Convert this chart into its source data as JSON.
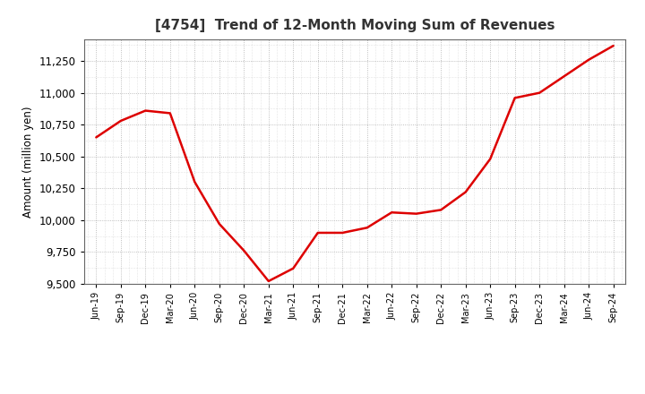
{
  "title": "[4754]  Trend of 12-Month Moving Sum of Revenues",
  "ylabel": "Amount (million yen)",
  "line_color": "#dd0000",
  "background_color": "#ffffff",
  "plot_bg_color": "#ffffff",
  "grid_color": "#999999",
  "ylim": [
    9500,
    11420
  ],
  "yticks": [
    9500,
    9750,
    10000,
    10250,
    10500,
    10750,
    11000,
    11250
  ],
  "x_labels": [
    "Jun-19",
    "Sep-19",
    "Dec-19",
    "Mar-20",
    "Jun-20",
    "Sep-20",
    "Dec-20",
    "Mar-21",
    "Jun-21",
    "Sep-21",
    "Dec-21",
    "Mar-22",
    "Jun-22",
    "Sep-22",
    "Dec-22",
    "Mar-23",
    "Jun-23",
    "Sep-23",
    "Dec-23",
    "Mar-24",
    "Jun-24",
    "Sep-24"
  ],
  "data_points": [
    10650,
    10780,
    10860,
    10840,
    10300,
    9970,
    9760,
    9520,
    9620,
    9900,
    9900,
    9940,
    10060,
    10050,
    10080,
    10220,
    10480,
    10960,
    11000,
    11130,
    11260,
    11370
  ]
}
